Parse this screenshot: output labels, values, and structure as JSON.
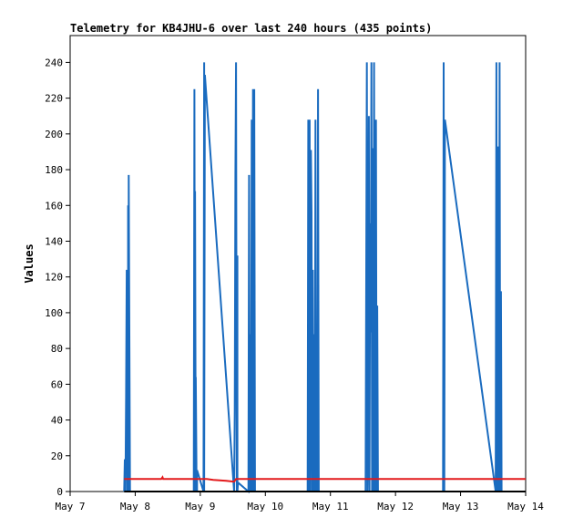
{
  "chart_data": {
    "type": "line",
    "title": "Telemetry for KB4JHU-6 over last 240 hours (435 points)",
    "xlabel": "",
    "ylabel": "Values",
    "x_ticks": [
      "May 7",
      "May 8",
      "May 9",
      "May 10",
      "May 11",
      "May 12",
      "May 13",
      "May 14"
    ],
    "xlim": [
      0,
      7
    ],
    "ylim": [
      0,
      255
    ],
    "y_ticks": [
      0,
      20,
      40,
      60,
      80,
      100,
      120,
      140,
      160,
      180,
      200,
      220,
      240
    ],
    "grid": false,
    "colors": {
      "blue": "#1a6bbf",
      "red": "#e31a1c",
      "black": "#000000"
    },
    "series": [
      {
        "color": "#1a6bbf",
        "x": [
          0.83,
          0.84,
          0.85,
          0.86,
          0.87,
          0.88,
          0.89,
          0.89,
          0.9,
          0.9,
          0.92,
          1.9,
          1.91,
          1.92,
          1.92,
          1.93,
          1.93,
          1.94,
          1.94,
          1.95,
          1.95,
          2.05,
          2.06,
          2.06,
          2.07,
          2.52,
          2.53,
          2.54,
          2.55,
          2.56,
          2.57,
          2.57,
          2.58,
          2.74,
          2.75,
          2.76,
          2.77,
          2.78,
          2.79,
          2.8,
          2.81,
          2.82,
          2.83,
          2.84,
          2.85,
          2.86,
          3.65,
          3.66,
          3.67,
          3.68,
          3.69,
          3.7,
          3.71,
          3.72,
          3.73,
          3.74,
          3.75,
          3.76,
          3.77,
          3.78,
          3.79,
          3.8,
          3.81,
          3.82,
          3.83,
          3.84,
          3.85,
          3.86,
          4.54,
          4.55,
          4.56,
          4.57,
          4.58,
          4.59,
          4.6,
          4.61,
          4.62,
          4.63,
          4.64,
          4.65,
          4.66,
          4.67,
          4.68,
          4.69,
          4.7,
          4.71,
          4.72,
          4.73,
          4.74,
          4.75,
          5.73,
          5.74,
          5.75,
          5.76,
          6.54,
          6.55,
          6.56,
          6.57,
          6.58,
          6.59,
          6.6,
          6.61,
          6.62,
          6.63,
          6.64
        ],
        "y": [
          0,
          18,
          0,
          53,
          124,
          0,
          88,
          160,
          0,
          177,
          0,
          0,
          225,
          0,
          168,
          0,
          64,
          16,
          0,
          0,
          12,
          0,
          240,
          0,
          233,
          0,
          45,
          177,
          240,
          0,
          132,
          0,
          5,
          0,
          177,
          0,
          88,
          0,
          208,
          0,
          225,
          0,
          225,
          0,
          0,
          0,
          0,
          208,
          0,
          208,
          0,
          191,
          156,
          0,
          124,
          0,
          88,
          0,
          208,
          0,
          0,
          0,
          225,
          0,
          0,
          0,
          0,
          0,
          0,
          121,
          240,
          0,
          30,
          210,
          0,
          150,
          89,
          240,
          0,
          192,
          0,
          240,
          0,
          0,
          208,
          0,
          104,
          0,
          0,
          0,
          0,
          240,
          0,
          208,
          0,
          240,
          0,
          0,
          193,
          0,
          240,
          0,
          112,
          0,
          0
        ]
      },
      {
        "color": "#e31a1c",
        "x": [
          0.83,
          1.0,
          1.4,
          1.42,
          1.43,
          1.8,
          2.0,
          2.1,
          2.2,
          2.4,
          2.52,
          2.55,
          2.6,
          2.7,
          3.0,
          4.0,
          5.0,
          6.0,
          7.0
        ],
        "y": [
          7,
          7,
          7,
          8,
          7,
          7,
          7,
          7,
          6.5,
          6,
          5.5,
          7,
          7,
          7,
          7,
          7,
          7,
          7,
          7
        ]
      },
      {
        "color": "#000000",
        "x": [
          0.83,
          7.0
        ],
        "y": [
          0,
          0
        ]
      }
    ]
  }
}
